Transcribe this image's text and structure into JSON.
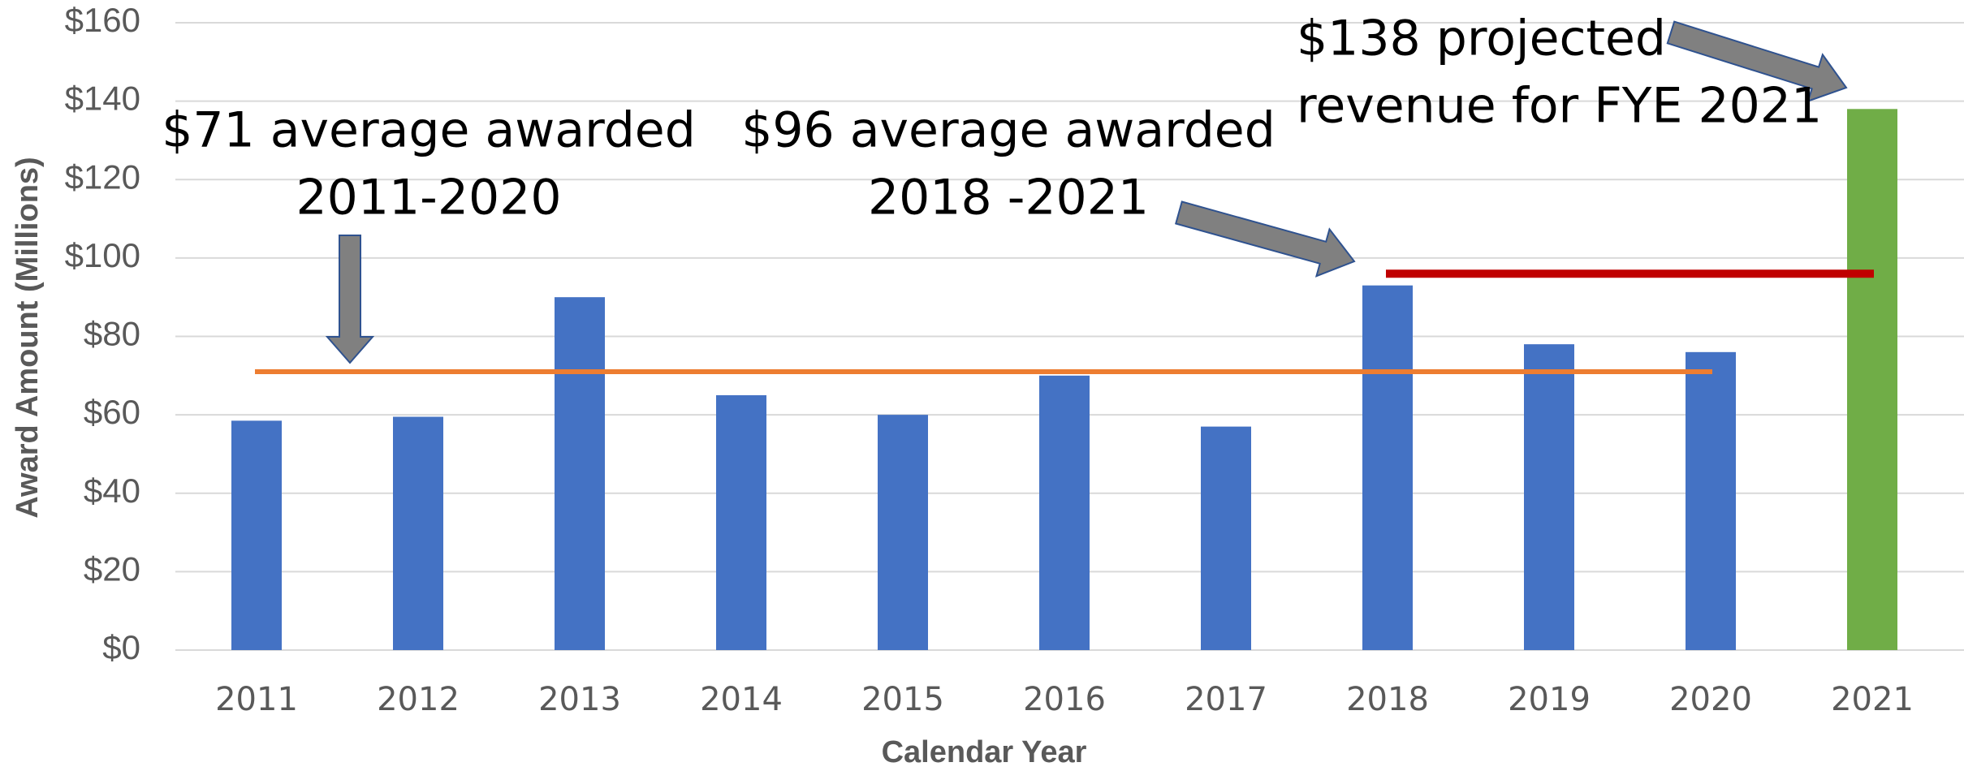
{
  "chart_data": {
    "type": "bar",
    "x_label": "Calendar Year",
    "y_label": "Award Amount (Millions)",
    "categories": [
      "2011",
      "2012",
      "2013",
      "2014",
      "2015",
      "2016",
      "2017",
      "2018",
      "2019",
      "2020",
      "2021"
    ],
    "values": [
      58.5,
      59.5,
      90,
      65,
      60,
      70,
      57,
      93,
      78,
      76,
      138
    ],
    "colors": [
      "#4472c4",
      "#4472c4",
      "#4472c4",
      "#4472c4",
      "#4472c4",
      "#4472c4",
      "#4472c4",
      "#4472c4",
      "#4472c4",
      "#4472c4",
      "#70ad47"
    ],
    "ylim": [
      0,
      160
    ],
    "yticks": [
      {
        "value": 0,
        "label": "$0"
      },
      {
        "value": 20,
        "label": "$20"
      },
      {
        "value": 40,
        "label": "$40"
      },
      {
        "value": 60,
        "label": "$60"
      },
      {
        "value": 80,
        "label": "$80"
      },
      {
        "value": 100,
        "label": "$100"
      },
      {
        "value": 120,
        "label": "$120"
      },
      {
        "value": 140,
        "label": "$140"
      },
      {
        "value": 160,
        "label": "$160"
      }
    ],
    "grid": true,
    "reference_lines": [
      {
        "value": 71,
        "color": "#ed7d31",
        "span": [
          "2011",
          "2020"
        ]
      },
      {
        "value": 96,
        "color": "#c00000",
        "span": [
          "2018",
          "2021"
        ]
      }
    ],
    "annotations": [
      {
        "text": [
          "$71 average awarded",
          "2011-2020"
        ]
      },
      {
        "text": [
          "$96 average awarded",
          "2018 -2021"
        ]
      },
      {
        "text": [
          "$138 projected",
          "revenue for FYE 2021"
        ]
      }
    ]
  }
}
